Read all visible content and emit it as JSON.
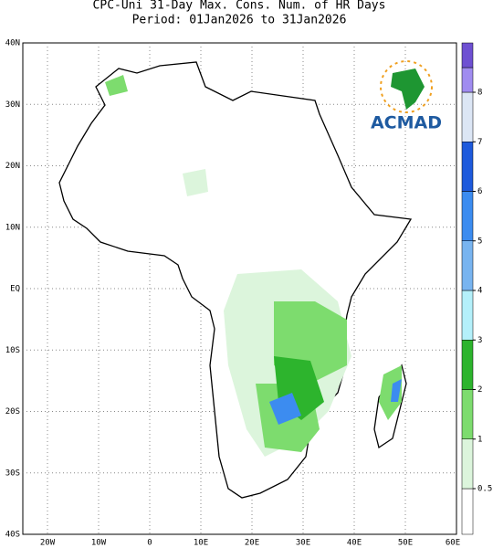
{
  "header": {
    "title": "CPC-Uni 31-Day Max. Cons. Num. of HR Days",
    "subtitle": "Period: 01Jan2026 to 31Jan2026"
  },
  "map": {
    "lat_labels": [
      "40N",
      "30N",
      "20N",
      "10N",
      "EQ",
      "10S",
      "20S",
      "30S",
      "40S"
    ],
    "lon_labels": [
      "20W",
      "10W",
      "0",
      "10E",
      "20E",
      "30E",
      "40E",
      "50E",
      "60E"
    ]
  },
  "legend": {
    "ticks": [
      0.5,
      1,
      2,
      3,
      4,
      5,
      6,
      7,
      8
    ],
    "colors": [
      "#ffffff",
      "#dcf5dc",
      "#7ddc6e",
      "#2db42d",
      "#b4f0fa",
      "#78b4f0",
      "#3c8cf0",
      "#1e5adc",
      "#dce6f5",
      "#a08cf0",
      "#6e50d2"
    ]
  },
  "logo": {
    "text": "ACMAD"
  }
}
